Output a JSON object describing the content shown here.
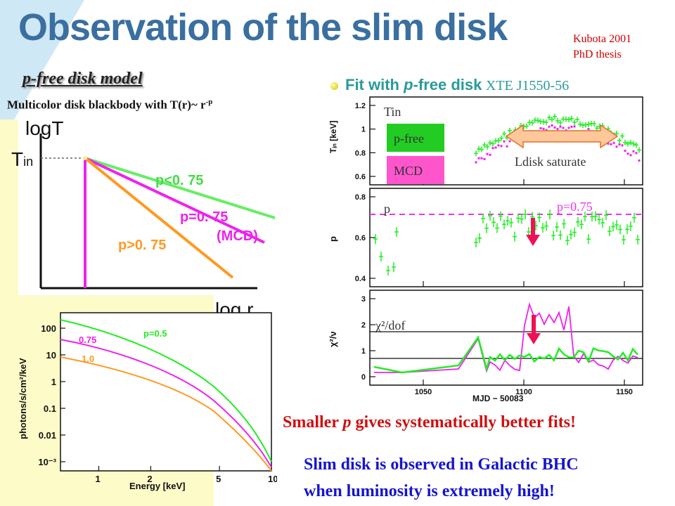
{
  "slide": {
    "title": "Observation of the slim disk",
    "citation": [
      "Kubota 2001",
      "PhD thesis"
    ],
    "subtitle_italic": "p",
    "subtitle_rest": "-free disk model",
    "description": "Multicolor disk blackbody with T(r)~ r",
    "description_sup": "-p",
    "fit_prefix": "Fit with ",
    "fit_italic": "p",
    "fit_rest": "-free disk",
    "fit_source": "XTE J1550-56",
    "conclusion1_pre": "Smaller ",
    "conclusion1_italic": "p",
    "conclusion1_post": " gives systematically better fits!",
    "conclusion2_lines": [
      "Slim disk is observed in Galactic BHC",
      "when luminosity is extremely high!"
    ]
  },
  "schematic": {
    "y_label": "logT",
    "tin_label": "T",
    "tin_sub": "in",
    "x_label": "log  r",
    "lines": [
      {
        "label": "p<0. 75",
        "color": "#55e855"
      },
      {
        "label": "p=0. 75",
        "color": "#ee22ee"
      },
      {
        "label": "(MCD)",
        "color": "#ee22ee"
      },
      {
        "label": "p>0. 75",
        "color": "#ff9922"
      }
    ]
  },
  "spectrum": {
    "type": "line",
    "xlabel": "Energy [keV]",
    "ylabel": "photons/s/cm²/keV",
    "x_ticks": [
      "1",
      "2",
      "5",
      "10"
    ],
    "y_ticks": [
      "100",
      "10",
      "1",
      "0.1",
      "0.01",
      "10⁻³"
    ],
    "series": [
      {
        "name": "p=0.5",
        "color": "#22ee22"
      },
      {
        "name": "0.75",
        "color": "#ee22ee"
      },
      {
        "name": "1.0",
        "color": "#ff9922"
      }
    ]
  },
  "chart_data": {
    "type": "scatter",
    "xlabel": "MJD − 50083",
    "x_ticks": [
      "1050",
      "1100",
      "1150"
    ],
    "panels": [
      {
        "name": "Tin",
        "ylabel": "Tᵢₙ [keV]",
        "y_ticks": [
          "0.6",
          "0.8",
          "1",
          "1.2"
        ],
        "annotation": "Ldisk saturate",
        "legend": [
          {
            "label": "p-free",
            "color": "#22cc22"
          },
          {
            "label": "MCD",
            "color": "#ff55cc"
          }
        ]
      },
      {
        "name": "p",
        "ylabel": "p",
        "y_ticks": [
          "0.4",
          "0.6",
          "0.8"
        ],
        "reference": "p=0.75"
      },
      {
        "name": "χ²/dof",
        "ylabel": "χ²/ν",
        "y_ticks": [
          "0",
          "1",
          "2",
          "3"
        ]
      }
    ]
  },
  "colors": {
    "title": "#3a6fa0",
    "conclusion_red": "#cc1111",
    "conclusion_blue": "#1515cc",
    "fit_teal": "#2a9a9a",
    "pfree_green": "#22cc22",
    "mcd_magenta": "#ff55cc",
    "arrow_red": "#ee1155"
  }
}
